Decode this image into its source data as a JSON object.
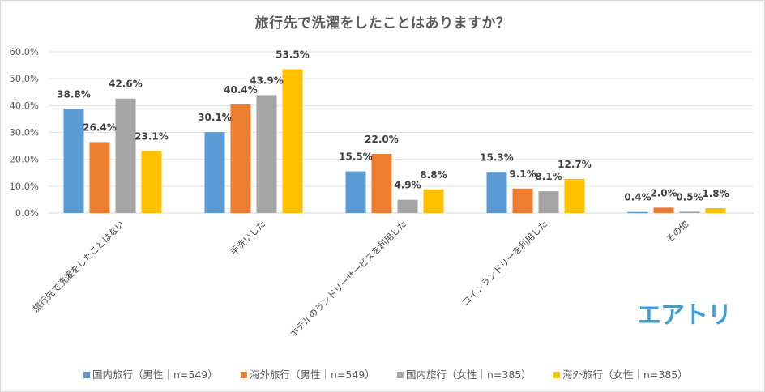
{
  "chart_data": {
    "type": "bar",
    "title": "旅行先で洗濯をしたことはありますか？",
    "xlabel": "",
    "ylabel": "",
    "ylim": [
      0,
      60
    ],
    "yticks": [
      "0.0%",
      "10.0%",
      "20.0%",
      "30.0%",
      "40.0%",
      "50.0%",
      "60.0%"
    ],
    "ytick_values": [
      0,
      10,
      20,
      30,
      40,
      50,
      60
    ],
    "grid": true,
    "legend_position": "bottom",
    "categories": [
      "旅行先で洗濯をしたことはない",
      "手洗いした",
      "ホテルのランドリーサービスを利用した",
      "コインランドリーを利用した",
      "その他"
    ],
    "series": [
      {
        "name": "国内旅行（男性｜n=549）",
        "color": "#5b9bd5",
        "values": [
          38.8,
          30.1,
          15.5,
          15.3,
          0.4
        ],
        "labels": [
          "38.8%",
          "30.1%",
          "15.5%",
          "15.3%",
          "0.4%"
        ]
      },
      {
        "name": "海外旅行（男性｜n=549）",
        "color": "#ed7d31",
        "values": [
          26.4,
          40.4,
          22.0,
          9.1,
          2.0
        ],
        "labels": [
          "26.4%",
          "40.4%",
          "22.0%",
          "9.1%",
          "2.0%"
        ]
      },
      {
        "name": "国内旅行（女性｜n=385）",
        "color": "#a5a5a5",
        "values": [
          42.6,
          43.9,
          4.9,
          8.1,
          0.5
        ],
        "labels": [
          "42.6%",
          "43.9%",
          "4.9%",
          "8.1%",
          "0.5%"
        ]
      },
      {
        "name": "海外旅行（女性｜n=385）",
        "color": "#ffc000",
        "values": [
          23.1,
          53.5,
          8.8,
          12.7,
          1.8
        ],
        "labels": [
          "23.1%",
          "53.5%",
          "8.8%",
          "12.7%",
          "1.8%"
        ]
      }
    ]
  },
  "logo": {
    "text": "エアトリ",
    "color": "#3e9fd6"
  }
}
